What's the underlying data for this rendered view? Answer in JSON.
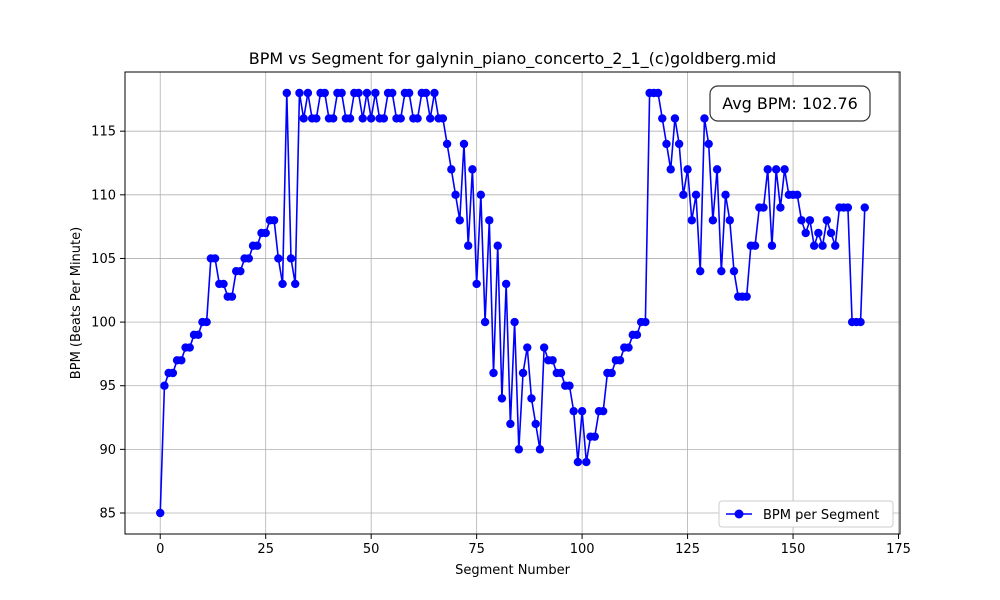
{
  "chart_data": {
    "type": "line",
    "title": "BPM vs Segment for galynin_piano_concerto_2_1_(c)goldberg.mid",
    "xlabel": "Segment Number",
    "ylabel": "BPM (Beats Per Minute)",
    "xlim": [
      -8.35,
      175.35
    ],
    "ylim": [
      83.35,
      119.65
    ],
    "xticks": [
      0,
      25,
      50,
      75,
      100,
      125,
      150,
      175
    ],
    "yticks": [
      85,
      90,
      95,
      100,
      105,
      110,
      115
    ],
    "grid": true,
    "legend": {
      "position": "bottom-right",
      "label": "BPM per Segment"
    },
    "annotation": "Avg BPM: 102.76",
    "series": [
      {
        "name": "BPM per Segment",
        "color": "#0000ff",
        "x": [
          0,
          1,
          2,
          3,
          4,
          5,
          6,
          7,
          8,
          9,
          10,
          11,
          12,
          13,
          14,
          15,
          16,
          17,
          18,
          19,
          20,
          21,
          22,
          23,
          24,
          25,
          26,
          27,
          28,
          29,
          30,
          31,
          32,
          33,
          34,
          35,
          36,
          37,
          38,
          39,
          40,
          41,
          42,
          43,
          44,
          45,
          46,
          47,
          48,
          49,
          50,
          51,
          52,
          53,
          54,
          55,
          56,
          57,
          58,
          59,
          60,
          61,
          62,
          63,
          64,
          65,
          66,
          67,
          68,
          69,
          70,
          71,
          72,
          73,
          74,
          75,
          76,
          77,
          78,
          79,
          80,
          81,
          82,
          83,
          84,
          85,
          86,
          87,
          88,
          89,
          90,
          91,
          92,
          93,
          94,
          95,
          96,
          97,
          98,
          99,
          100,
          101,
          102,
          103,
          104,
          105,
          106,
          107,
          108,
          109,
          110,
          111,
          112,
          113,
          114,
          115,
          116,
          117,
          118,
          119,
          120,
          121,
          122,
          123,
          124,
          125,
          126,
          127,
          128,
          129,
          130,
          131,
          132,
          133,
          134,
          135,
          136,
          137,
          138,
          139,
          140,
          141,
          142,
          143,
          144,
          145,
          146,
          147,
          148,
          149,
          150,
          151,
          152,
          153,
          154,
          155,
          156,
          157,
          158,
          159,
          160,
          161,
          162,
          163,
          164,
          165,
          166,
          167
        ],
        "y": [
          85,
          95,
          96,
          96,
          97,
          97,
          98,
          98,
          99,
          99,
          100,
          100,
          105,
          105,
          103,
          103,
          102,
          102,
          104,
          104,
          105,
          105,
          106,
          106,
          107,
          107,
          108,
          108,
          105,
          103,
          118,
          105,
          103,
          118,
          116,
          118,
          116,
          116,
          118,
          118,
          116,
          116,
          118,
          118,
          116,
          116,
          118,
          118,
          116,
          118,
          116,
          118,
          116,
          116,
          118,
          118,
          116,
          116,
          118,
          118,
          116,
          116,
          118,
          118,
          116,
          118,
          116,
          116,
          114,
          112,
          110,
          108,
          114,
          106,
          112,
          103,
          110,
          100,
          108,
          96,
          106,
          94,
          103,
          92,
          100,
          90,
          96,
          98,
          94,
          92,
          90,
          98,
          97,
          97,
          96,
          96,
          95,
          95,
          93,
          89,
          93,
          89,
          91,
          91,
          93,
          93,
          96,
          96,
          97,
          97,
          98,
          98,
          99,
          99,
          100,
          100,
          118,
          118,
          118,
          116,
          114,
          112,
          116,
          114,
          110,
          112,
          108,
          110,
          104,
          116,
          114,
          108,
          112,
          104,
          110,
          108,
          104,
          102,
          102,
          102,
          106,
          106,
          109,
          109,
          112,
          106,
          112,
          109,
          112,
          110,
          110,
          110,
          108,
          107,
          108,
          106,
          107,
          106,
          108,
          107,
          106,
          109,
          109,
          109,
          100,
          100,
          100,
          109
        ]
      }
    ]
  }
}
